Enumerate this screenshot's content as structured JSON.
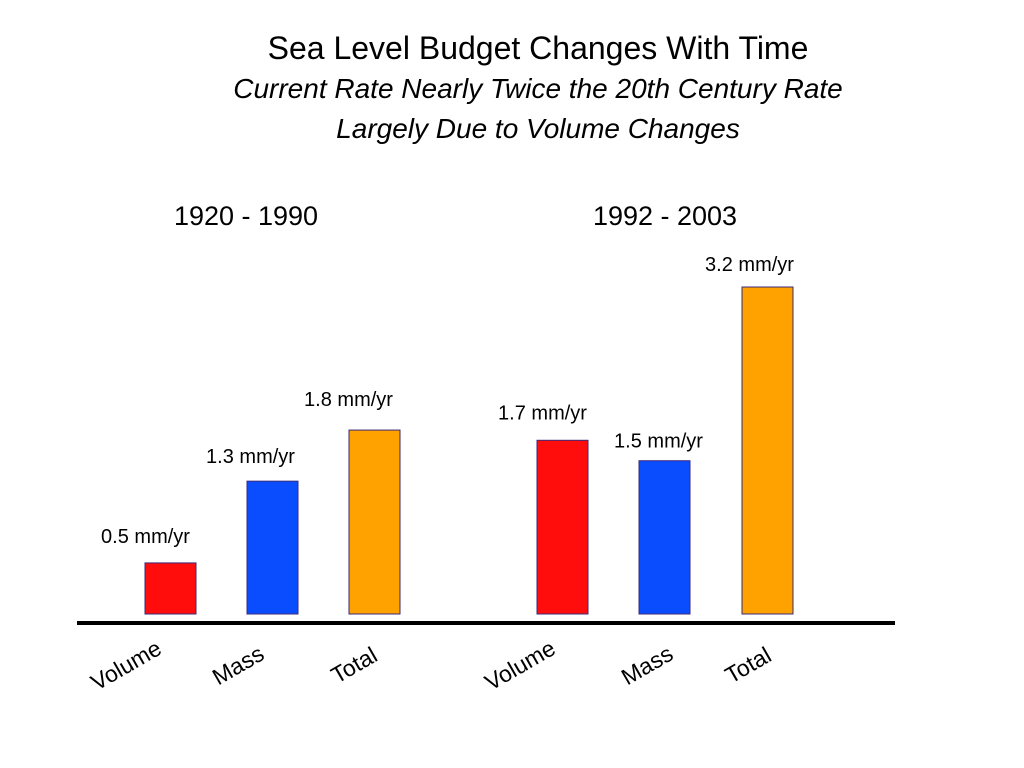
{
  "chart_data": {
    "type": "bar",
    "title": "Sea Level Budget Changes With Time",
    "subtitle_lines": [
      "Current Rate Nearly Twice the 20th Century Rate",
      "Largely Due to Volume Changes"
    ],
    "unit": "mm/yr",
    "groups": [
      {
        "name": "1920 - 1990",
        "bars": [
          {
            "category": "Volume",
            "value": 0.5,
            "label": "0.5 mm/yr",
            "color": "#ff0d0d"
          },
          {
            "category": "Mass",
            "value": 1.3,
            "label": "1.3 mm/yr",
            "color": "#0a4dff"
          },
          {
            "category": "Total",
            "value": 1.8,
            "label": "1.8 mm/yr",
            "color": "#ffa200"
          }
        ]
      },
      {
        "name": "1992 - 2003",
        "bars": [
          {
            "category": "Volume",
            "value": 1.7,
            "label": "1.7 mm/yr",
            "color": "#ff0d0d"
          },
          {
            "category": "Mass",
            "value": 1.5,
            "label": "1.5 mm/yr",
            "color": "#0a4dff"
          },
          {
            "category": "Total",
            "value": 3.2,
            "label": "3.2 mm/yr",
            "color": "#ffa200"
          }
        ]
      }
    ],
    "ylim": [
      0,
      3.2
    ],
    "grid": false,
    "legend": "none"
  }
}
